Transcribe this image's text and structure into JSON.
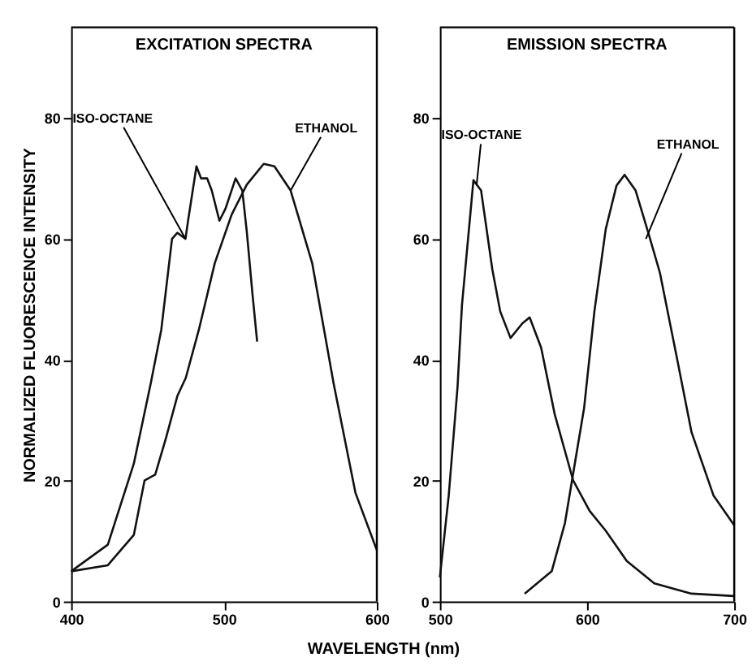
{
  "chart_data": [
    {
      "type": "line",
      "title": "EXCITATION SPECTRA",
      "xlabel": "WAVELENGTH (nm)",
      "ylabel": "NORMALIZED FLUORESCENCE INTENSITY",
      "xlim": [
        400,
        600
      ],
      "xticks": [
        400,
        500,
        600
      ],
      "ylim": [
        0,
        95
      ],
      "yticks": [
        0,
        20,
        40,
        60,
        80
      ],
      "grid": false,
      "marker": "none",
      "line_style": "solid",
      "series": [
        {
          "color": "#111111",
          "x": [
            400,
            424,
            441,
            452,
            459,
            466,
            469.5,
            474.8,
            476.5,
            482,
            485,
            489,
            492,
            497,
            501,
            507.6,
            512,
            515,
            518.6,
            521.7
          ],
          "values": [
            5,
            9.4,
            22.8,
            36,
            45,
            60,
            61,
            60,
            63,
            72,
            70,
            70,
            68,
            63,
            65,
            70,
            68,
            61,
            51,
            43
          ]
        },
        {
          "color": "#111111",
          "x": [
            400,
            424,
            441,
            448,
            455,
            462,
            469.5,
            475,
            483.6,
            494,
            505,
            515,
            526,
            533,
            543.6,
            557.7,
            571.8,
            586,
            600
          ],
          "values": [
            5,
            6,
            11,
            20,
            21,
            27,
            34,
            37,
            45,
            56,
            64,
            69,
            72.4,
            72,
            68,
            56,
            36,
            18,
            8.5
          ]
        }
      ],
      "annotations": [
        {
          "text": "ISO-OCTANE",
          "x": 474.8,
          "y": 60
        },
        {
          "text": "ETHANOL",
          "x": 543.6,
          "y": 68
        }
      ]
    },
    {
      "type": "line",
      "title": "EMISSION SPECTRA",
      "xlim": [
        500,
        700
      ],
      "xticks": [
        500,
        600,
        700
      ],
      "ylim": [
        0,
        95
      ],
      "yticks": [
        0,
        20,
        40,
        60,
        80
      ],
      "grid": false,
      "marker": "none",
      "line_style": "solid",
      "series": [
        {
          "color": "#111111",
          "x": [
            500,
            506,
            512,
            515,
            522.8,
            528,
            535.6,
            541,
            548,
            556,
            561,
            568.8,
            578,
            590.6,
            601.7,
            612.7,
            627,
            645.7,
            671,
            700
          ],
          "values": [
            4,
            17.5,
            35.5,
            49,
            69.7,
            68,
            55,
            48,
            43.6,
            46,
            47,
            42,
            31,
            20,
            15,
            11.7,
            6.7,
            3,
            1.3,
            0.9
          ]
        },
        {
          "color": "#111111",
          "x": [
            557.6,
            576,
            585,
            592.5,
            598,
            605,
            612.7,
            620,
            625.5,
            633,
            642,
            649.5,
            660.5,
            671,
            686,
            700
          ],
          "values": [
            1.3,
            5,
            13,
            24,
            32,
            48,
            61.6,
            68.8,
            70.6,
            68,
            60.7,
            54.4,
            41,
            28,
            17.5,
            12.6
          ]
        }
      ],
      "annotations": [
        {
          "text": "ISO-OCTANE",
          "x": 525,
          "y": 69
        },
        {
          "text": "ETHANOL",
          "x": 640,
          "y": 60
        }
      ]
    }
  ]
}
